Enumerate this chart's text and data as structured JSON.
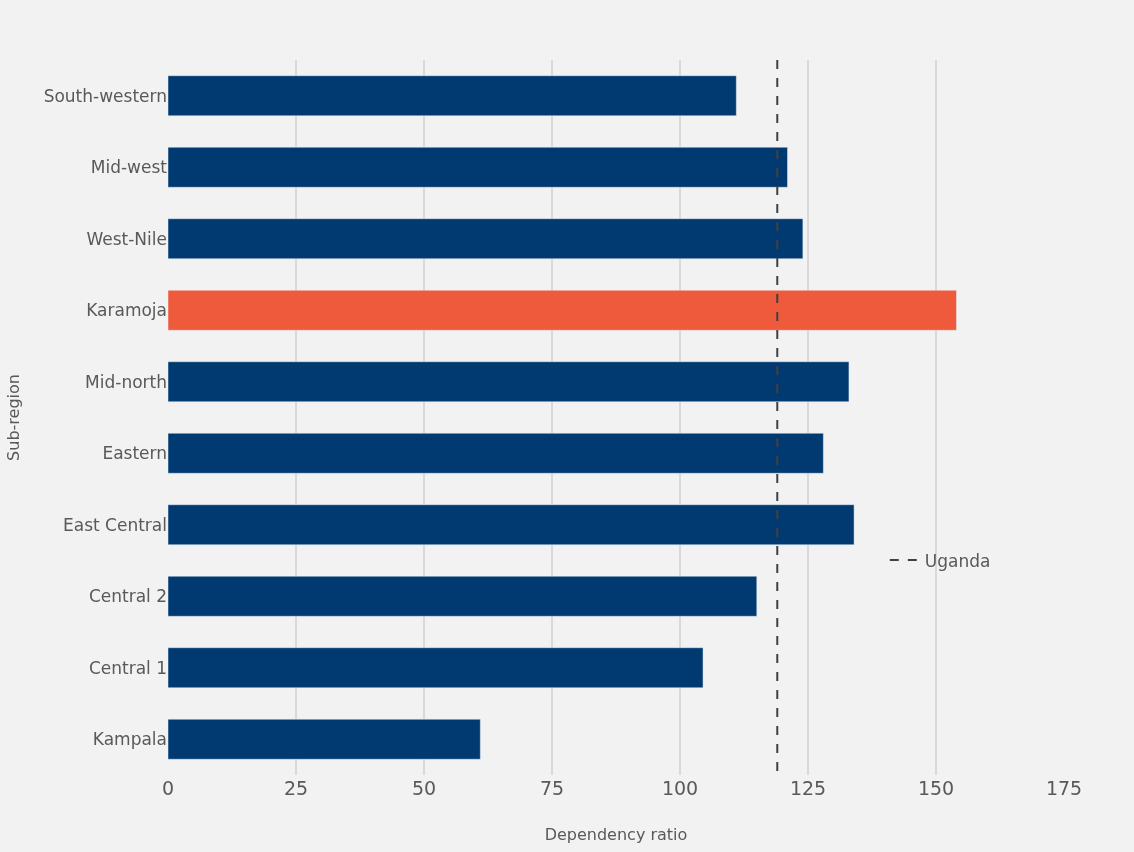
{
  "chart_data": {
    "type": "bar",
    "orientation": "horizontal",
    "xlabel": "Dependency ratio",
    "ylabel": "Sub-region",
    "categories": [
      "South-western",
      "Mid-west",
      "West-Nile",
      "Karamoja",
      "Mid-north",
      "Eastern",
      "East Central",
      "Central 2",
      "Central 1",
      "Kampala"
    ],
    "values": [
      111,
      121,
      124,
      154,
      133,
      128,
      134,
      115,
      104.5,
      61
    ],
    "colors": [
      "#003a70",
      "#003a70",
      "#003a70",
      "#f05a3c",
      "#003a70",
      "#003a70",
      "#003a70",
      "#003a70",
      "#003a70",
      "#003a70"
    ],
    "xlim": [
      0,
      175
    ],
    "xticks": [
      0,
      25,
      50,
      75,
      100,
      125,
      150,
      175
    ],
    "grid": "x",
    "ref_lines": [
      {
        "axis": "x",
        "value": 119,
        "label": "Uganda",
        "color": "#404040",
        "line_style": "dashed"
      }
    ],
    "legend": "right"
  }
}
